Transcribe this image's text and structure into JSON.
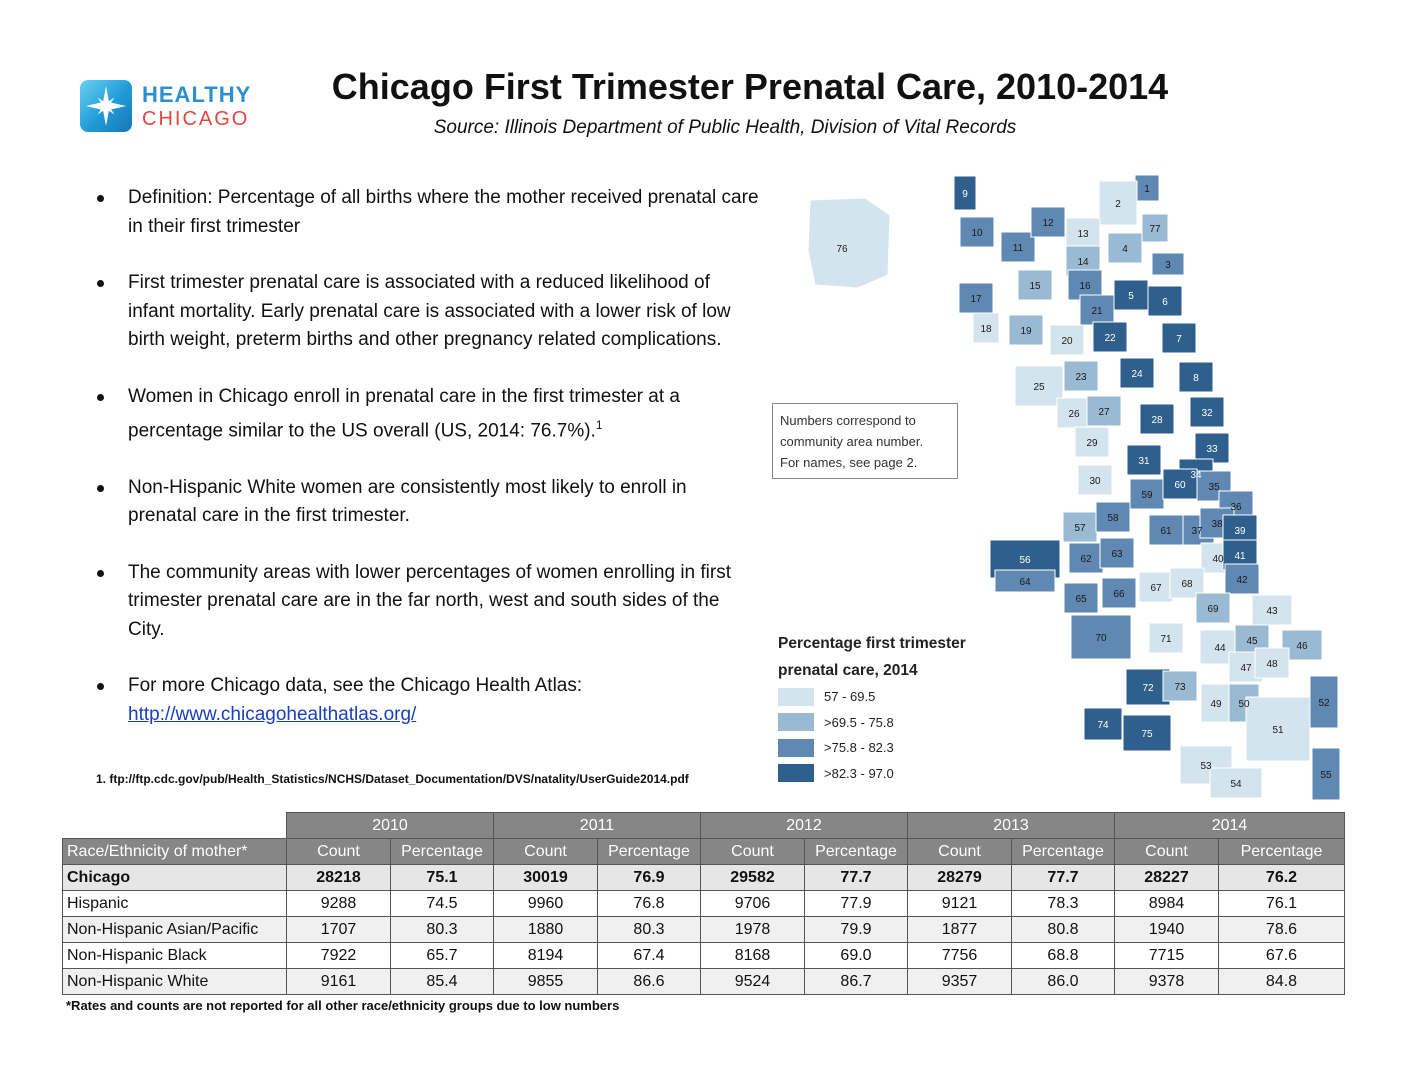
{
  "logo": {
    "top": "HEALTHY",
    "bottom": "CHICAGO",
    "icon": "star-burst-icon"
  },
  "title": "Chicago First Trimester Prenatal Care, 2010-2014",
  "source": "Source:   Illinois Department of Public Health, Division of Vital Records",
  "bullets": [
    "Definition: Percentage of all births where the mother received prenatal care in their first trimester",
    "First trimester prenatal care is associated with a reduced likelihood of infant mortality. Early prenatal care is associated with a lower risk of low birth weight, preterm births and other pregnancy related complications.",
    "Women in Chicago enroll in prenatal care in the first trimester at a percentage similar to the US overall (US, 2014: 76.7%).",
    "Non-Hispanic White women are consistently most likely to enroll in prenatal care in the first trimester.",
    "The community areas with lower percentages of women enrolling in first trimester prenatal care are in the far north, west and south sides of the City.",
    "For more Chicago data, see the Chicago Health Atlas:"
  ],
  "bullet3_sup": "1",
  "atlas_link": "http://www.chicagohealthatlas.org/",
  "footnote": "1. ftp://ftp.cdc.gov/pub/Health_Statistics/NCHS/Dataset_Documentation/DVS/natality/UserGuide2014.pdf",
  "map_note": [
    "Numbers correspond to",
    "community area number.",
    "For names, see page 2."
  ],
  "legend": {
    "title_line1": "Percentage first trimester",
    "title_line2": "prenatal care, 2014",
    "items": [
      {
        "label": "57 - 69.5",
        "color": "#d4e4ee"
      },
      {
        "label": ">69.5 - 75.8",
        "color": "#9ab9d3"
      },
      {
        "label": ">75.8 - 82.3",
        "color": "#5f88b2"
      },
      {
        "label": ">82.3 - 97.0",
        "color": "#2f5f8c"
      }
    ]
  },
  "map_areas": [
    {
      "n": "1",
      "c": 2
    },
    {
      "n": "2",
      "c": 0
    },
    {
      "n": "3",
      "c": 2
    },
    {
      "n": "4",
      "c": 1
    },
    {
      "n": "5",
      "c": 3
    },
    {
      "n": "6",
      "c": 3
    },
    {
      "n": "7",
      "c": 3
    },
    {
      "n": "8",
      "c": 3
    },
    {
      "n": "9",
      "c": 3
    },
    {
      "n": "10",
      "c": 2
    },
    {
      "n": "11",
      "c": 2
    },
    {
      "n": "12",
      "c": 2
    },
    {
      "n": "13",
      "c": 0
    },
    {
      "n": "14",
      "c": 1
    },
    {
      "n": "15",
      "c": 1
    },
    {
      "n": "16",
      "c": 2
    },
    {
      "n": "17",
      "c": 2
    },
    {
      "n": "18",
      "c": 0
    },
    {
      "n": "19",
      "c": 1
    },
    {
      "n": "20",
      "c": 0
    },
    {
      "n": "21",
      "c": 2
    },
    {
      "n": "22",
      "c": 3
    },
    {
      "n": "23",
      "c": 1
    },
    {
      "n": "24",
      "c": 3
    },
    {
      "n": "25",
      "c": 0
    },
    {
      "n": "26",
      "c": 0
    },
    {
      "n": "27",
      "c": 1
    },
    {
      "n": "28",
      "c": 3
    },
    {
      "n": "29",
      "c": 0
    },
    {
      "n": "30",
      "c": 0
    },
    {
      "n": "31",
      "c": 3
    },
    {
      "n": "32",
      "c": 3
    },
    {
      "n": "33",
      "c": 3
    },
    {
      "n": "34",
      "c": 3
    },
    {
      "n": "35",
      "c": 2
    },
    {
      "n": "36",
      "c": 2
    },
    {
      "n": "37",
      "c": 2
    },
    {
      "n": "38",
      "c": 2
    },
    {
      "n": "39",
      "c": 3
    },
    {
      "n": "40",
      "c": 0
    },
    {
      "n": "41",
      "c": 3
    },
    {
      "n": "42",
      "c": 2
    },
    {
      "n": "43",
      "c": 0
    },
    {
      "n": "44",
      "c": 0
    },
    {
      "n": "45",
      "c": 1
    },
    {
      "n": "46",
      "c": 1
    },
    {
      "n": "47",
      "c": 0
    },
    {
      "n": "48",
      "c": 0
    },
    {
      "n": "49",
      "c": 0
    },
    {
      "n": "50",
      "c": 1
    },
    {
      "n": "51",
      "c": 0
    },
    {
      "n": "52",
      "c": 2
    },
    {
      "n": "53",
      "c": 0
    },
    {
      "n": "54",
      "c": 0
    },
    {
      "n": "55",
      "c": 2
    },
    {
      "n": "56",
      "c": 3
    },
    {
      "n": "57",
      "c": 1
    },
    {
      "n": "58",
      "c": 2
    },
    {
      "n": "59",
      "c": 2
    },
    {
      "n": "60",
      "c": 3
    },
    {
      "n": "61",
      "c": 2
    },
    {
      "n": "62",
      "c": 2
    },
    {
      "n": "63",
      "c": 2
    },
    {
      "n": "64",
      "c": 2
    },
    {
      "n": "65",
      "c": 2
    },
    {
      "n": "66",
      "c": 2
    },
    {
      "n": "67",
      "c": 0
    },
    {
      "n": "68",
      "c": 0
    },
    {
      "n": "69",
      "c": 1
    },
    {
      "n": "70",
      "c": 2
    },
    {
      "n": "71",
      "c": 0
    },
    {
      "n": "72",
      "c": 3
    },
    {
      "n": "73",
      "c": 1
    },
    {
      "n": "74",
      "c": 3
    },
    {
      "n": "75",
      "c": 3
    },
    {
      "n": "76",
      "c": 0
    },
    {
      "n": "77",
      "c": 1
    }
  ],
  "table": {
    "years": [
      "2010",
      "2011",
      "2012",
      "2013",
      "2014"
    ],
    "row_header": "Race/Ethnicity of mother*",
    "count_label": "Count",
    "pct_label": "Percentage",
    "rows": [
      {
        "label": "Chicago",
        "values": [
          "28218",
          "75.1",
          "30019",
          "76.9",
          "29582",
          "77.7",
          "28279",
          "77.7",
          "28227",
          "76.2"
        ]
      },
      {
        "label": "Hispanic",
        "values": [
          "9288",
          "74.5",
          "9960",
          "76.8",
          "9706",
          "77.9",
          "9121",
          "78.3",
          "8984",
          "76.1"
        ]
      },
      {
        "label": "Non-Hispanic Asian/Pacific",
        "values": [
          "1707",
          "80.3",
          "1880",
          "80.3",
          "1978",
          "79.9",
          "1877",
          "80.8",
          "1940",
          "78.6"
        ]
      },
      {
        "label": "Non-Hispanic Black",
        "values": [
          "7922",
          "65.7",
          "8194",
          "67.4",
          "8168",
          "69.0",
          "7756",
          "68.8",
          "7715",
          "67.6"
        ]
      },
      {
        "label": "Non-Hispanic White",
        "values": [
          "9161",
          "85.4",
          "9855",
          "86.6",
          "9524",
          "86.7",
          "9357",
          "86.0",
          "9378",
          "84.8"
        ]
      }
    ],
    "note": "*Rates and counts are not reported for all other race/ethnicity groups due to low numbers"
  }
}
